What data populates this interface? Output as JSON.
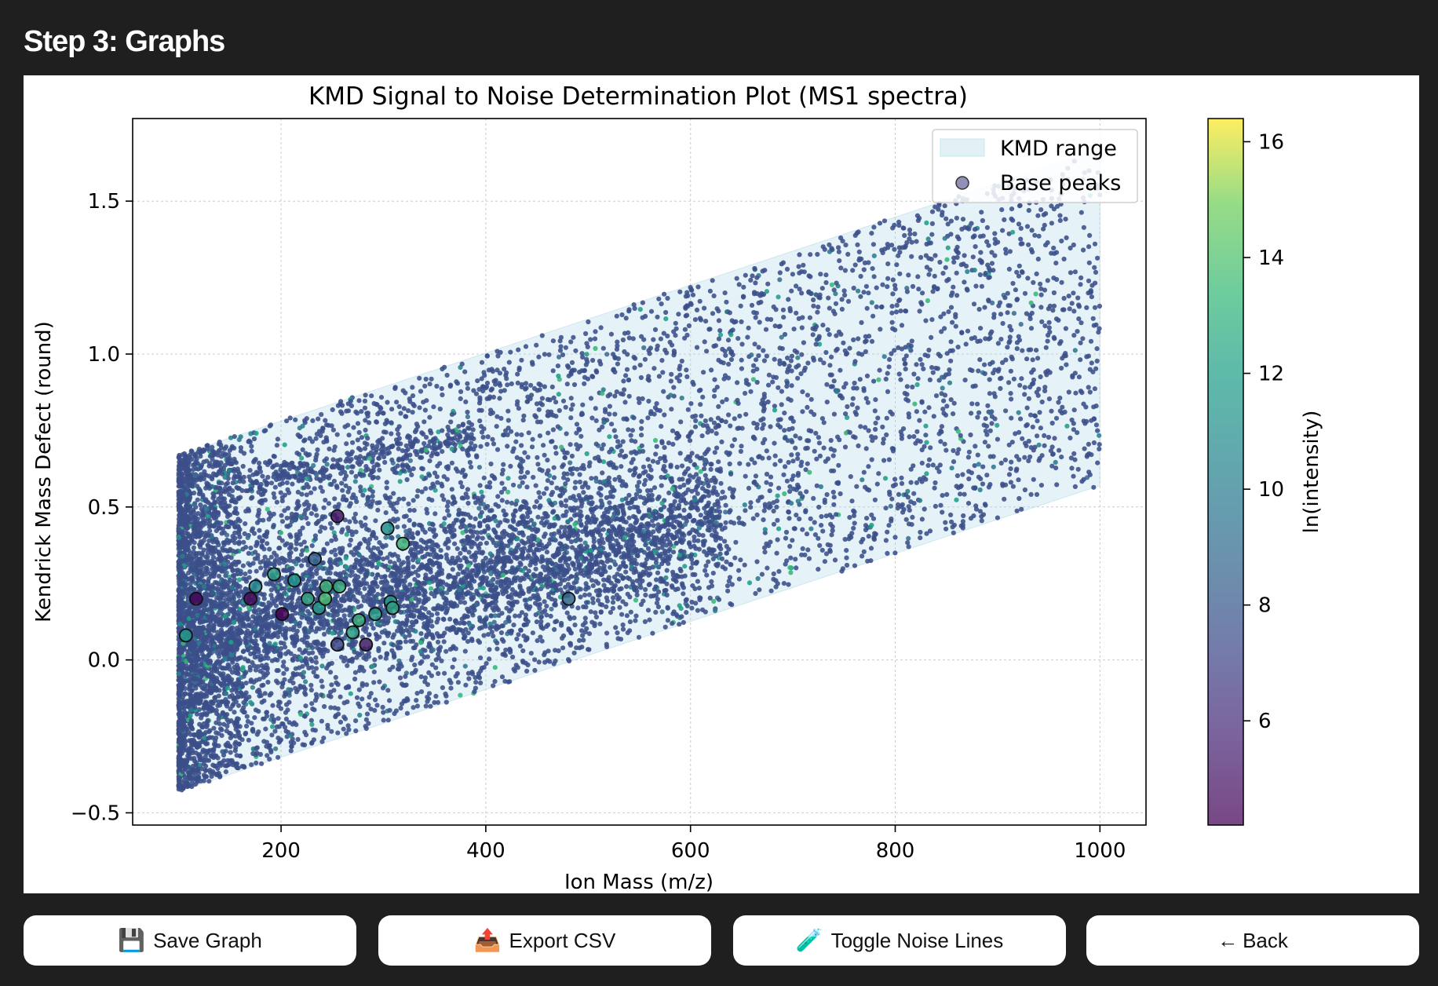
{
  "header": {
    "title": "Step 3: Graphs"
  },
  "buttons": [
    {
      "label": "Save Graph",
      "icon": "floppy-disk-icon",
      "glyph": "💾"
    },
    {
      "label": "Export CSV",
      "icon": "outbox-tray-icon",
      "glyph": "📤"
    },
    {
      "label": "Toggle Noise Lines",
      "icon": "test-tube-icon",
      "glyph": "🧪"
    },
    {
      "label": "Back",
      "icon": "arrow-left-icon",
      "glyph": "←"
    }
  ],
  "chart_data": {
    "type": "scatter",
    "title": "KMD Signal to Noise Determination Plot (MS1 spectra)",
    "xlabel": "Ion Mass (m/z)",
    "ylabel": "Kendrick Mass Defect (round)",
    "xlim": [
      55,
      1045
    ],
    "ylim": [
      -0.54,
      1.77
    ],
    "xticks": [
      200,
      400,
      600,
      800,
      1000
    ],
    "xtick_labels": [
      "200",
      "400",
      "600",
      "800",
      "1000"
    ],
    "yticks": [
      -0.5,
      0.0,
      0.5,
      1.0,
      1.5
    ],
    "ytick_labels": [
      "−0.5",
      "0.0",
      "0.5",
      "1.0",
      "1.5"
    ],
    "grid": true,
    "legend": {
      "position": "top-right",
      "entries": [
        "KMD range",
        "Base peaks"
      ]
    },
    "colorbar": {
      "label": "ln(intensity)",
      "range": [
        4.2,
        16.4
      ],
      "ticks": [
        6,
        8,
        10,
        12,
        14,
        16
      ],
      "tick_labels": [
        "6",
        "8",
        "10",
        "12",
        "14",
        "16"
      ],
      "colormap": "viridis"
    },
    "kmd_range_band": {
      "x": [
        100,
        1000
      ],
      "lower": [
        -0.43,
        0.57
      ],
      "upper": [
        0.67,
        1.67
      ],
      "color": "#add8e6"
    },
    "noise_cloud": {
      "x_range": [
        100,
        1000
      ],
      "dominant_ln_intensity": 7,
      "point_color": "#3b4f8a"
    },
    "base_peaks": [
      {
        "x": 107,
        "y": 0.08,
        "ln_intensity": 10.5
      },
      {
        "x": 117,
        "y": 0.2,
        "ln_intensity": 4.4
      },
      {
        "x": 170,
        "y": 0.2,
        "ln_intensity": 4.6
      },
      {
        "x": 175,
        "y": 0.24,
        "ln_intensity": 9.8
      },
      {
        "x": 193,
        "y": 0.28,
        "ln_intensity": 10.8
      },
      {
        "x": 201,
        "y": 0.15,
        "ln_intensity": 4.2
      },
      {
        "x": 213,
        "y": 0.26,
        "ln_intensity": 10.3
      },
      {
        "x": 226,
        "y": 0.2,
        "ln_intensity": 11.2
      },
      {
        "x": 233,
        "y": 0.33,
        "ln_intensity": 7.8
      },
      {
        "x": 237,
        "y": 0.17,
        "ln_intensity": 10.6
      },
      {
        "x": 243,
        "y": 0.2,
        "ln_intensity": 12.3
      },
      {
        "x": 244,
        "y": 0.24,
        "ln_intensity": 11.8
      },
      {
        "x": 255,
        "y": 0.47,
        "ln_intensity": 4.9
      },
      {
        "x": 255,
        "y": 0.05,
        "ln_intensity": 6.8
      },
      {
        "x": 257,
        "y": 0.24,
        "ln_intensity": 11.4
      },
      {
        "x": 270,
        "y": 0.09,
        "ln_intensity": 10.9
      },
      {
        "x": 276,
        "y": 0.13,
        "ln_intensity": 11.6
      },
      {
        "x": 283,
        "y": 0.05,
        "ln_intensity": 5.2
      },
      {
        "x": 292,
        "y": 0.15,
        "ln_intensity": 10.7
      },
      {
        "x": 304,
        "y": 0.43,
        "ln_intensity": 10.2
      },
      {
        "x": 307,
        "y": 0.19,
        "ln_intensity": 10.4
      },
      {
        "x": 309,
        "y": 0.17,
        "ln_intensity": 11.0
      },
      {
        "x": 319,
        "y": 0.38,
        "ln_intensity": 12.0
      },
      {
        "x": 481,
        "y": 0.2,
        "ln_intensity": 8.3
      }
    ]
  }
}
